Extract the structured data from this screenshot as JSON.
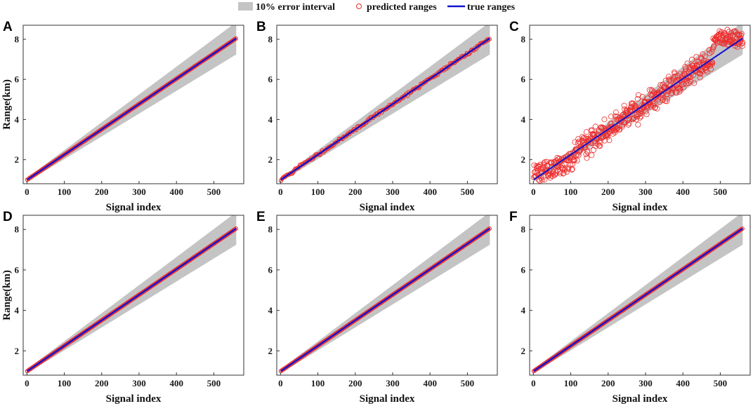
{
  "legend": {
    "band_label": "10% error interval",
    "predicted_label": "predicted ranges",
    "true_label": "true ranges"
  },
  "colors": {
    "band": "#c4c4c4",
    "predicted": "#ee2b2b",
    "true": "#1212cc",
    "axis": "#333333"
  },
  "chart_data": [
    {
      "panel": "A",
      "type": "scatter",
      "xlabel": "Signal index",
      "ylabel": "Range(km)",
      "xlim": [
        -10,
        580
      ],
      "ylim": [
        0.8,
        8.7
      ],
      "xticks": [
        0,
        100,
        200,
        300,
        400,
        500
      ],
      "yticks": [
        2,
        4,
        6,
        8
      ],
      "true_line": {
        "x": [
          1,
          560
        ],
        "y": [
          1.0,
          8.05
        ]
      },
      "band_pct": 10,
      "noise_km": 0.0
    },
    {
      "panel": "B",
      "type": "scatter",
      "xlabel": "Signal index",
      "ylabel": "",
      "xlim": [
        -10,
        580
      ],
      "ylim": [
        0.8,
        8.7
      ],
      "xticks": [
        0,
        100,
        200,
        300,
        400,
        500
      ],
      "yticks": [
        2,
        4,
        6,
        8
      ],
      "true_line": {
        "x": [
          1,
          560
        ],
        "y": [
          1.0,
          8.05
        ]
      },
      "band_pct": 10,
      "noise_km": 0.04
    },
    {
      "panel": "C",
      "type": "scatter",
      "xlabel": "Signal index",
      "ylabel": "",
      "xlim": [
        -10,
        580
      ],
      "ylim": [
        0.8,
        8.7
      ],
      "xticks": [
        0,
        100,
        200,
        300,
        400,
        500
      ],
      "yticks": [
        2,
        4,
        6,
        8
      ],
      "true_line": {
        "x": [
          1,
          560
        ],
        "y": [
          1.0,
          8.05
        ]
      },
      "band_pct": 10,
      "noise_km": 0.3
    },
    {
      "panel": "D",
      "type": "scatter",
      "xlabel": "Signal index",
      "ylabel": "Range(km)",
      "xlim": [
        -10,
        580
      ],
      "ylim": [
        0.8,
        8.7
      ],
      "xticks": [
        0,
        100,
        200,
        300,
        400,
        500
      ],
      "yticks": [
        2,
        4,
        6,
        8
      ],
      "true_line": {
        "x": [
          1,
          560
        ],
        "y": [
          1.0,
          8.05
        ]
      },
      "band_pct": 10,
      "noise_km": 0.0
    },
    {
      "panel": "E",
      "type": "scatter",
      "xlabel": "Signal index",
      "ylabel": "",
      "xlim": [
        -10,
        580
      ],
      "ylim": [
        0.8,
        8.7
      ],
      "xticks": [
        0,
        100,
        200,
        300,
        400,
        500
      ],
      "yticks": [
        2,
        4,
        6,
        8
      ],
      "true_line": {
        "x": [
          1,
          560
        ],
        "y": [
          1.0,
          8.05
        ]
      },
      "band_pct": 10,
      "noise_km": 0.0
    },
    {
      "panel": "F",
      "type": "scatter",
      "xlabel": "Signal index",
      "ylabel": "",
      "xlim": [
        -10,
        580
      ],
      "ylim": [
        0.8,
        8.7
      ],
      "xticks": [
        0,
        100,
        200,
        300,
        400,
        500
      ],
      "yticks": [
        2,
        4,
        6,
        8
      ],
      "true_line": {
        "x": [
          1,
          560
        ],
        "y": [
          1.0,
          8.05
        ]
      },
      "band_pct": 10,
      "noise_km": 0.0
    }
  ]
}
